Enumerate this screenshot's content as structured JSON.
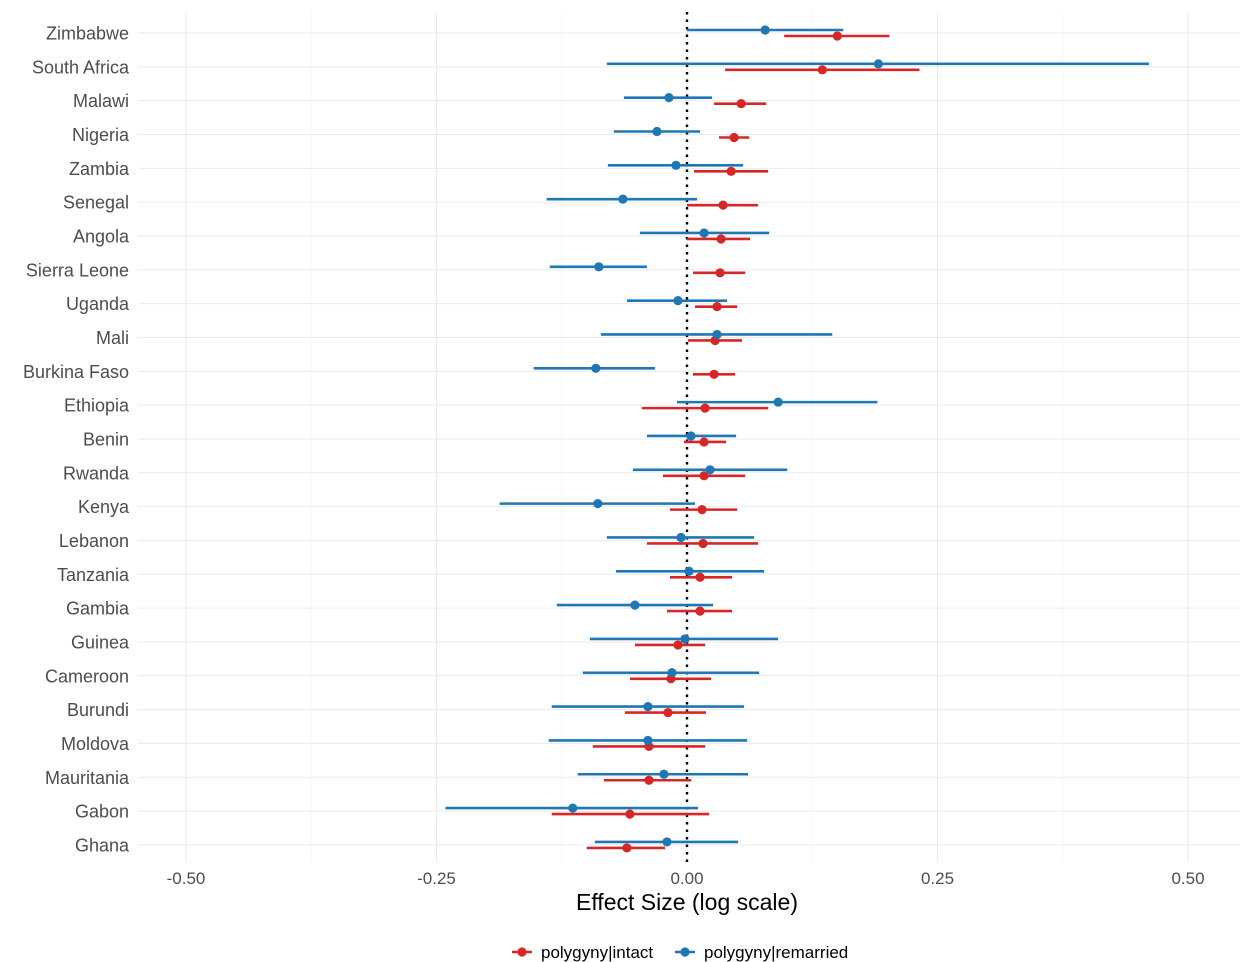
{
  "chart_data": {
    "type": "forest",
    "title": "",
    "xlabel": "Effect Size (log scale)",
    "ylabel": "",
    "xlim": [
      -0.55,
      0.53
    ],
    "xticks": [
      -0.5,
      -0.25,
      0.0,
      0.25,
      0.5
    ],
    "xtick_labels": [
      "-0.50",
      "-0.25",
      "0.00",
      "0.25",
      "0.50"
    ],
    "reference_line": 0,
    "grid": true,
    "legend_position": "bottom",
    "categories": [
      "Zimbabwe",
      "South Africa",
      "Malawi",
      "Nigeria",
      "Zambia",
      "Senegal",
      "Angola",
      "Sierra Leone",
      "Uganda",
      "Mali",
      "Burkina Faso",
      "Ethiopia",
      "Benin",
      "Rwanda",
      "Kenya",
      "Lebanon",
      "Tanzania",
      "Gambia",
      "Guinea",
      "Cameroon",
      "Burundi",
      "Moldova",
      "Mauritania",
      "Gabon",
      "Ghana"
    ],
    "series": [
      {
        "name": "polygyny|intact",
        "color": "#d62728",
        "estimate": [
          0.15,
          0.135,
          0.054,
          0.047,
          0.044,
          0.036,
          0.034,
          0.033,
          0.03,
          0.028,
          0.027,
          0.018,
          0.017,
          0.017,
          0.015,
          0.016,
          0.013,
          0.013,
          -0.009,
          -0.016,
          -0.019,
          -0.038,
          -0.038,
          -0.057,
          -0.06
        ],
        "lower": [
          0.097,
          0.038,
          0.027,
          0.032,
          0.007,
          0.0,
          0.0,
          0.006,
          0.008,
          0.001,
          0.006,
          -0.045,
          -0.003,
          -0.024,
          -0.017,
          -0.04,
          -0.017,
          -0.02,
          -0.052,
          -0.057,
          -0.062,
          -0.094,
          -0.083,
          -0.135,
          -0.1
        ],
        "upper": [
          0.202,
          0.232,
          0.079,
          0.062,
          0.081,
          0.071,
          0.063,
          0.058,
          0.05,
          0.055,
          0.048,
          0.081,
          0.039,
          0.058,
          0.05,
          0.071,
          0.045,
          0.045,
          0.018,
          0.024,
          0.019,
          0.018,
          0.004,
          0.022,
          -0.022
        ]
      },
      {
        "name": "polygyny|remarried",
        "color": "#1f77b4",
        "estimate": [
          0.078,
          0.191,
          -0.018,
          -0.03,
          -0.011,
          -0.064,
          0.017,
          -0.088,
          -0.009,
          0.03,
          -0.091,
          0.091,
          0.004,
          0.023,
          -0.089,
          -0.006,
          0.002,
          -0.052,
          -0.002,
          -0.015,
          -0.039,
          -0.039,
          -0.023,
          -0.114,
          -0.02
        ],
        "lower": [
          0.0,
          -0.08,
          -0.063,
          -0.073,
          -0.079,
          -0.14,
          -0.047,
          -0.137,
          -0.06,
          -0.086,
          -0.153,
          -0.01,
          -0.04,
          -0.054,
          -0.187,
          -0.08,
          -0.071,
          -0.13,
          -0.097,
          -0.104,
          -0.135,
          -0.138,
          -0.109,
          -0.241,
          -0.092
        ],
        "upper": [
          0.156,
          0.461,
          0.025,
          0.013,
          0.056,
          0.01,
          0.082,
          -0.04,
          0.04,
          0.145,
          -0.032,
          0.19,
          0.049,
          0.1,
          0.008,
          0.067,
          0.077,
          0.026,
          0.091,
          0.072,
          0.057,
          0.06,
          0.061,
          0.011,
          0.051
        ]
      }
    ]
  }
}
